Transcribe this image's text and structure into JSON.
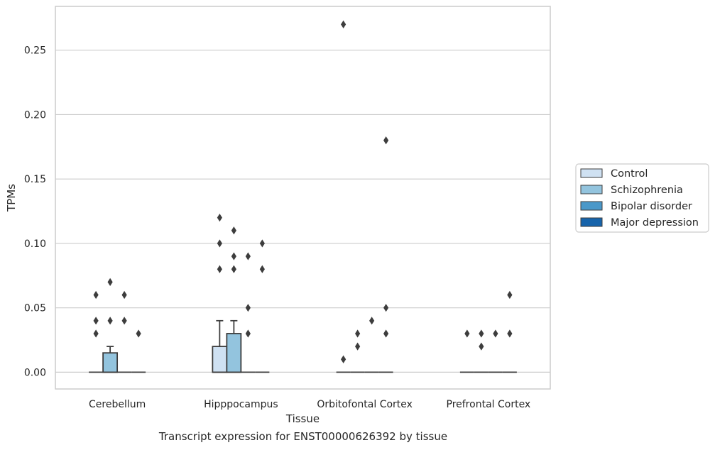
{
  "chart_data": {
    "type": "box",
    "xlabel": "Tissue",
    "ylabel": "TPMs",
    "caption": "Transcript expression for ENST00000626392 by tissue",
    "categories": [
      "Cerebellum",
      "Hipppocampus",
      "Orbitofontal Cortex",
      "Prefrontal Cortex"
    ],
    "ylim": [
      -0.013,
      0.284
    ],
    "yticks": [
      0.0,
      0.05,
      0.1,
      0.15,
      0.2,
      0.25
    ],
    "ytick_labels": [
      "0.00",
      "0.05",
      "0.10",
      "0.15",
      "0.20",
      "0.25"
    ],
    "grid": "horizontal",
    "legend_position": "right",
    "series": [
      {
        "name": "Control",
        "color": "#cfe1f2",
        "boxes": [
          {
            "q1": 0,
            "median": 0,
            "q3": 0,
            "whisker_low": 0,
            "whisker_high": 0,
            "outliers": [
              0.03,
              0.04,
              0.06
            ]
          },
          {
            "q1": 0,
            "median": 0,
            "q3": 0.02,
            "whisker_low": 0,
            "whisker_high": 0.04,
            "outliers": [
              0.08,
              0.1,
              0.12
            ]
          },
          {
            "q1": 0,
            "median": 0,
            "q3": 0,
            "whisker_low": 0,
            "whisker_high": 0,
            "outliers": [
              0.01,
              0.27
            ]
          },
          {
            "q1": 0,
            "median": 0,
            "q3": 0,
            "whisker_low": 0,
            "whisker_high": 0,
            "outliers": [
              0.03
            ]
          }
        ]
      },
      {
        "name": "Schizophrenia",
        "color": "#93c4de",
        "boxes": [
          {
            "q1": 0,
            "median": 0,
            "q3": 0.015,
            "whisker_low": 0,
            "whisker_high": 0.02,
            "outliers": [
              0.04,
              0.07
            ]
          },
          {
            "q1": 0,
            "median": 0,
            "q3": 0.03,
            "whisker_low": 0,
            "whisker_high": 0.04,
            "outliers": [
              0.08,
              0.09,
              0.11
            ]
          },
          {
            "q1": 0,
            "median": 0,
            "q3": 0,
            "whisker_low": 0,
            "whisker_high": 0,
            "outliers": [
              0.02,
              0.03
            ]
          },
          {
            "q1": 0,
            "median": 0,
            "q3": 0,
            "whisker_low": 0,
            "whisker_high": 0,
            "outliers": [
              0.02,
              0.03
            ]
          }
        ]
      },
      {
        "name": "Bipolar disorder",
        "color": "#4a98c9",
        "boxes": [
          {
            "q1": 0,
            "median": 0,
            "q3": 0,
            "whisker_low": 0,
            "whisker_high": 0,
            "outliers": [
              0.04,
              0.06
            ]
          },
          {
            "q1": 0,
            "median": 0,
            "q3": 0,
            "whisker_low": 0,
            "whisker_high": 0,
            "outliers": [
              0.03,
              0.05,
              0.09
            ]
          },
          {
            "q1": 0,
            "median": 0,
            "q3": 0,
            "whisker_low": 0,
            "whisker_high": 0,
            "outliers": [
              0.04
            ]
          },
          {
            "q1": 0,
            "median": 0,
            "q3": 0,
            "whisker_low": 0,
            "whisker_high": 0,
            "outliers": [
              0.03
            ]
          }
        ]
      },
      {
        "name": "Major depression",
        "color": "#1764ab",
        "boxes": [
          {
            "q1": 0,
            "median": 0,
            "q3": 0,
            "whisker_low": 0,
            "whisker_high": 0,
            "outliers": [
              0.03
            ]
          },
          {
            "q1": 0,
            "median": 0,
            "q3": 0,
            "whisker_low": 0,
            "whisker_high": 0,
            "outliers": [
              0.08,
              0.1
            ]
          },
          {
            "q1": 0,
            "median": 0,
            "q3": 0,
            "whisker_low": 0,
            "whisker_high": 0,
            "outliers": [
              0.03,
              0.05,
              0.18
            ]
          },
          {
            "q1": 0,
            "median": 0,
            "q3": 0,
            "whisker_low": 0,
            "whisker_high": 0,
            "outliers": [
              0.03,
              0.06
            ]
          }
        ]
      }
    ]
  }
}
